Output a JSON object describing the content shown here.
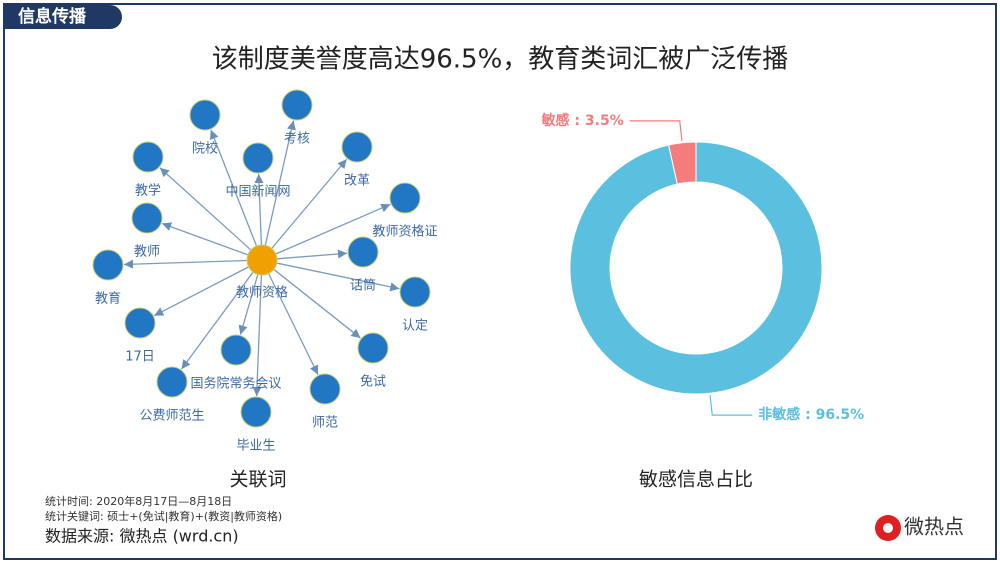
{
  "header": {
    "tab": "信息传播",
    "title": "该制度美誉度高达96.5%，教育类词汇被广泛传播"
  },
  "network": {
    "center": "教师资格",
    "caption": "关联词",
    "nodes": [
      "院校",
      "考核",
      "中国新闻网",
      "改革",
      "教学",
      "教师资格证",
      "教师",
      "话筒",
      "教育",
      "认定",
      "17日",
      "国务院常务会议",
      "免试",
      "公费师范生",
      "师范",
      "毕业生"
    ]
  },
  "chart_data": {
    "type": "pie",
    "title": "敏感信息占比",
    "values": [
      3.5,
      96.5
    ],
    "value_labels": [
      "敏感 : 3.5%",
      "非敏感 : 96.5%"
    ],
    "colors": [
      "#f47c7c",
      "#5bc0e0"
    ]
  },
  "footer": {
    "period": "统计时间: 2020年8月17日—8月18日",
    "keywords": "统计关键词: 硕士+(免试|教育)+(教资|教师资格)",
    "source": "数据来源: 微热点 (wrd.cn)",
    "logo": "微热点"
  }
}
